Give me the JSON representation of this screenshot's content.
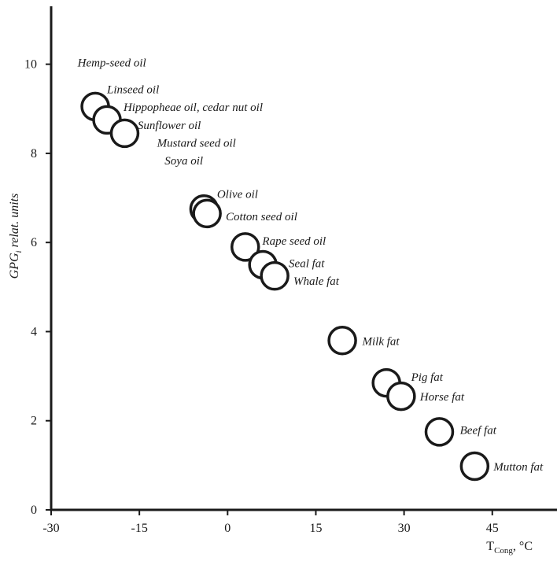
{
  "chart_data": {
    "type": "scatter",
    "title": "",
    "xlabel": {
      "main": "T",
      "sub": "Cong",
      "unit": ", °C"
    },
    "ylabel": {
      "main": "GPG",
      "sub": "i",
      "rest": " relat. units"
    },
    "xlim": [
      -30,
      56
    ],
    "ylim": [
      0,
      11.3
    ],
    "xticks": [
      -30,
      -15,
      0,
      15,
      30,
      45
    ],
    "yticks": [
      0,
      2,
      4,
      6,
      8,
      10
    ],
    "grid": false,
    "points": [
      {
        "x": -22.5,
        "y": 9.05
      },
      {
        "x": -20.5,
        "y": 8.75
      },
      {
        "x": -17.5,
        "y": 8.45
      },
      {
        "x": -4,
        "y": 6.75
      },
      {
        "x": -3.5,
        "y": 6.65
      },
      {
        "x": 3,
        "y": 5.9
      },
      {
        "x": 6,
        "y": 5.5
      },
      {
        "x": 8,
        "y": 5.25
      },
      {
        "x": 19.5,
        "y": 3.8
      },
      {
        "x": 27,
        "y": 2.85
      },
      {
        "x": 29.5,
        "y": 2.55
      },
      {
        "x": 36,
        "y": 1.75
      },
      {
        "x": 42,
        "y": 0.98
      }
    ],
    "labels": [
      {
        "text": "Hemp-seed oil",
        "x": -25.5,
        "y": 9.95
      },
      {
        "text": "Linseed oil",
        "x": -20.5,
        "y": 9.35
      },
      {
        "text": "Hippopheae oil, cedar nut oil",
        "x": -17.7,
        "y": 8.95
      },
      {
        "text": "Sunflower oil",
        "x": -15.3,
        "y": 8.55
      },
      {
        "text": "Mustard seed oil",
        "x": -12.0,
        "y": 8.15
      },
      {
        "text": "Soya oil",
        "x": -10.7,
        "y": 7.75
      },
      {
        "text": "Olive oil",
        "x": -1.8,
        "y": 7.0
      },
      {
        "text": "Cotton seed oil",
        "x": -0.3,
        "y": 6.5
      },
      {
        "text": "Rape seed oil",
        "x": 5.9,
        "y": 5.95
      },
      {
        "text": "Seal fat",
        "x": 10.4,
        "y": 5.45
      },
      {
        "text": "Whale fat",
        "x": 11.2,
        "y": 5.05
      },
      {
        "text": "Milk fat",
        "x": 22.9,
        "y": 3.7
      },
      {
        "text": "Pig fat",
        "x": 31.2,
        "y": 2.9
      },
      {
        "text": "Horse fat",
        "x": 32.7,
        "y": 2.45
      },
      {
        "text": "Beef fat",
        "x": 39.5,
        "y": 1.7
      },
      {
        "text": "Mutton fat",
        "x": 45.2,
        "y": 0.88
      }
    ]
  }
}
